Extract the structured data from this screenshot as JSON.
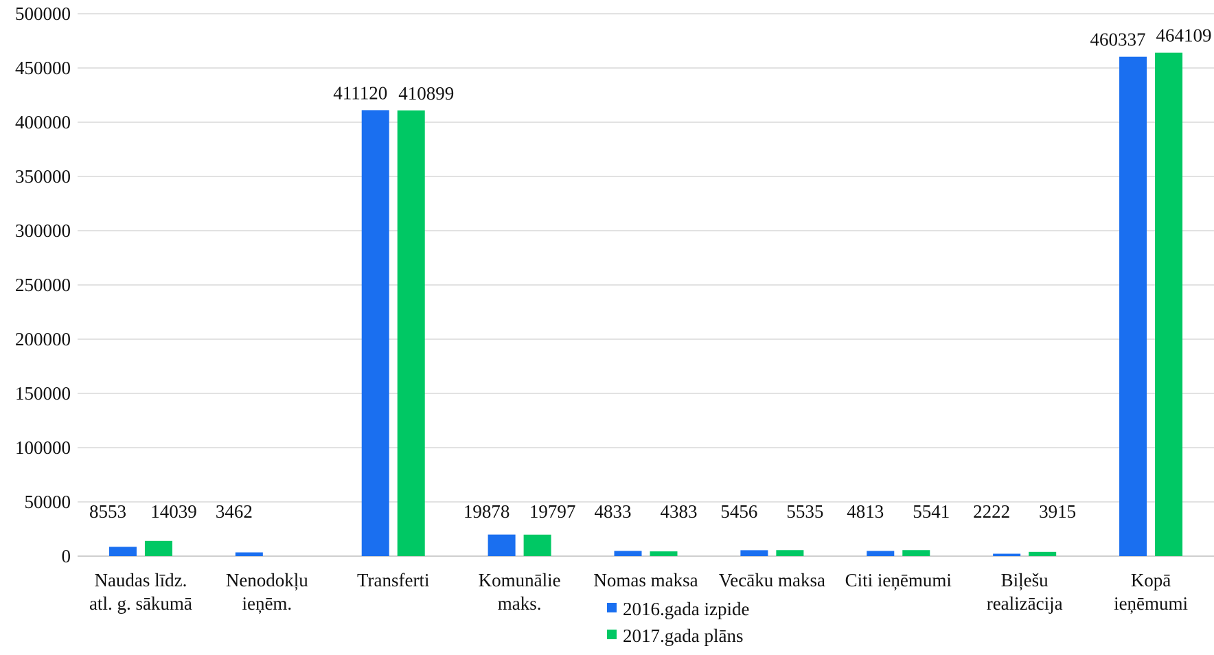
{
  "chart_data": {
    "type": "bar",
    "categories": [
      [
        "Naudas līdz.",
        "atl. g. sākumā"
      ],
      [
        "Nenodokļu",
        "ieņēm."
      ],
      [
        "Transferti"
      ],
      [
        "Komunālie",
        "maks."
      ],
      [
        "Nomas maksa"
      ],
      [
        "Vecāku maksa"
      ],
      [
        "Citi ieņēmumi"
      ],
      [
        "Biļešu",
        "realizācija"
      ],
      [
        "Kopā",
        "ieņēmumi"
      ]
    ],
    "series": [
      {
        "name": "2016.gada izpide",
        "color": "#1a6ff0",
        "values": [
          8553,
          3462,
          411120,
          19878,
          4833,
          5456,
          4813,
          2222,
          460337
        ]
      },
      {
        "name": "2017.gada plāns",
        "color": "#00c864",
        "values": [
          14039,
          null,
          410899,
          19797,
          4383,
          5535,
          5541,
          3915,
          464109
        ]
      }
    ],
    "ylim": [
      0,
      500000
    ],
    "yticks": [
      "0",
      "50000",
      "100000",
      "150000",
      "200000",
      "250000",
      "300000",
      "350000",
      "400000",
      "450000",
      "500000"
    ],
    "grid": true,
    "legend_position": "bottom-center",
    "title": "",
    "xlabel": "",
    "ylabel": ""
  }
}
